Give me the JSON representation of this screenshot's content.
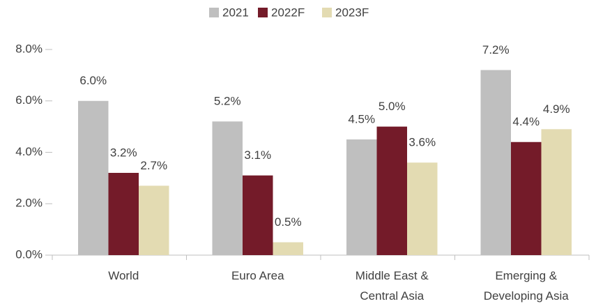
{
  "chart_data": {
    "type": "bar",
    "categories": [
      [
        "World"
      ],
      [
        "Euro Area"
      ],
      [
        "Middle East &",
        "Central Asia"
      ],
      [
        "Emerging &",
        "Developing Asia"
      ]
    ],
    "series": [
      {
        "name": "2021",
        "color": "#bfbfbf",
        "values": [
          6.0,
          5.2,
          4.5,
          7.2
        ],
        "value_labels": [
          "6.0%",
          "5.2%",
          "4.5%",
          "7.2%"
        ]
      },
      {
        "name": "2022F",
        "color": "#741b29",
        "values": [
          3.2,
          3.1,
          5.0,
          4.4
        ],
        "value_labels": [
          "3.2%",
          "3.1%",
          "5.0%",
          "4.4%"
        ]
      },
      {
        "name": "2023F",
        "color": "#e3dbb2",
        "values": [
          2.7,
          0.5,
          3.6,
          4.9
        ],
        "value_labels": [
          "2.7%",
          "0.5%",
          "3.6%",
          "4.9%"
        ]
      }
    ],
    "ylim": [
      0,
      8
    ],
    "yticks": [
      {
        "value": 0,
        "label": "0.0%"
      },
      {
        "value": 2,
        "label": "2.0%"
      },
      {
        "value": 4,
        "label": "4.0%"
      },
      {
        "value": 6,
        "label": "6.0%"
      },
      {
        "value": 8,
        "label": "8.0%"
      }
    ],
    "grid": false,
    "legend": "top"
  }
}
